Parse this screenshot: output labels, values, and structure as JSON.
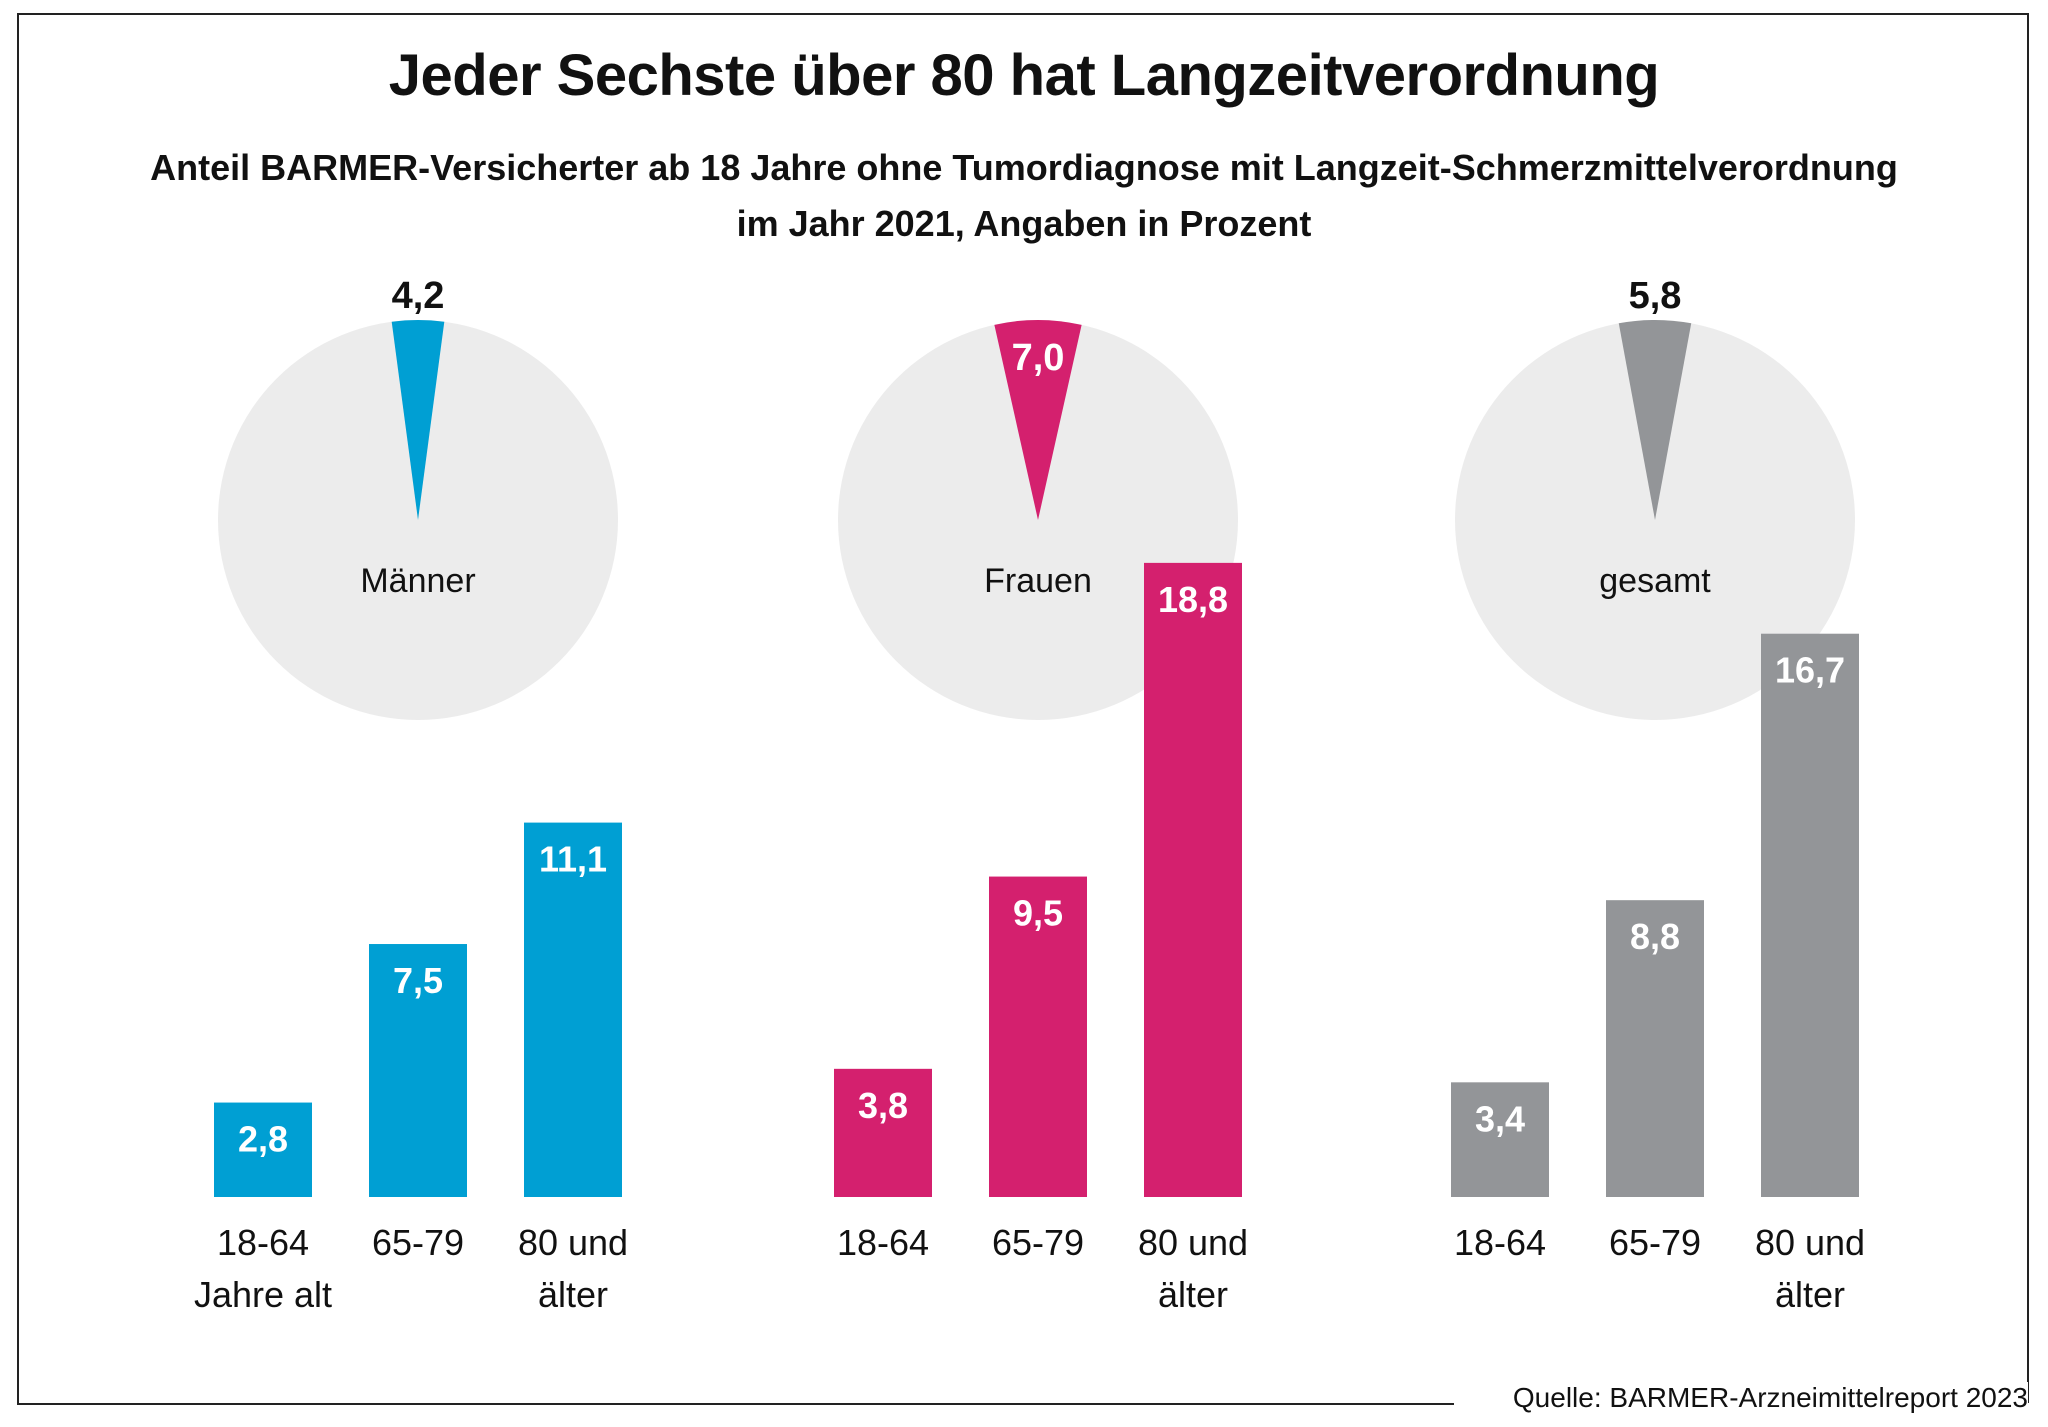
{
  "title": "Jeder Sechste über 80 hat Langzeitverordnung",
  "subtitle_line1": "Anteil BARMER-Versicherter ab 18 Jahre ohne Tumordiagnose mit Langzeit-Schmerzmittelverordnung",
  "subtitle_line2": "im Jahr 2021, Angaben in Prozent",
  "source": "Quelle: BARMER-Arzneimittelreport 2023",
  "colors": {
    "Männer": "#009fd3",
    "Frauen": "#d4206e",
    "gesamt": "#939598",
    "pie_background": "#ececec"
  },
  "chart_data": [
    {
      "type": "pie",
      "group": "Männer",
      "value": 4.2,
      "value_label": "4,2",
      "label": "Männer"
    },
    {
      "type": "pie",
      "group": "Frauen",
      "value": 7.0,
      "value_label": "7,0",
      "label": "Frauen"
    },
    {
      "type": "pie",
      "group": "gesamt",
      "value": 5.8,
      "value_label": "5,8",
      "label": "gesamt"
    },
    {
      "type": "bar",
      "group": "Männer",
      "categories": [
        [
          "18-64",
          "Jahre alt"
        ],
        [
          "65-79"
        ],
        [
          "80 und",
          "älter"
        ]
      ],
      "values": [
        2.8,
        7.5,
        11.1
      ],
      "value_labels": [
        "2,8",
        "7,5",
        "11,1"
      ]
    },
    {
      "type": "bar",
      "group": "Frauen",
      "categories": [
        [
          "18-64"
        ],
        [
          "65-79"
        ],
        [
          "80 und",
          "älter"
        ]
      ],
      "values": [
        3.8,
        9.5,
        18.8
      ],
      "value_labels": [
        "3,8",
        "9,5",
        "18,8"
      ]
    },
    {
      "type": "bar",
      "group": "gesamt",
      "categories": [
        [
          "18-64"
        ],
        [
          "65-79"
        ],
        [
          "80 und",
          "älter"
        ]
      ],
      "values": [
        3.4,
        8.8,
        16.7
      ],
      "value_labels": [
        "3,4",
        "8,8",
        "16,7"
      ]
    }
  ]
}
